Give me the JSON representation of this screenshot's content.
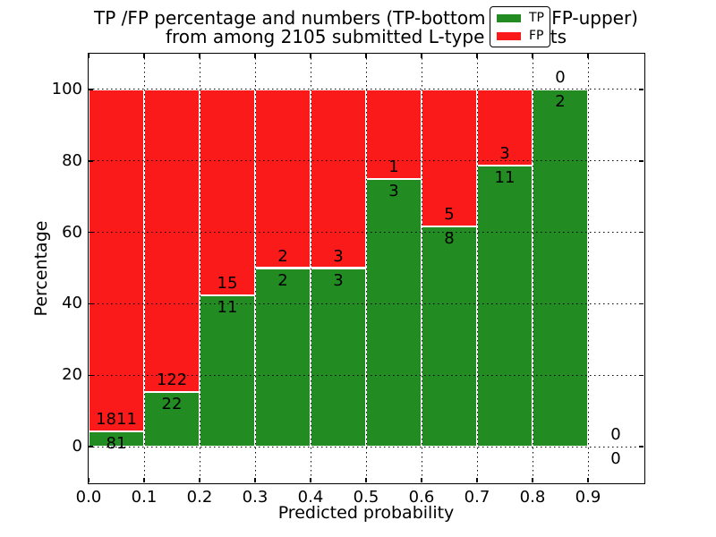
{
  "figure": {
    "title_line1": "TP /FP percentage and numbers (TP-bottom value, FP-upper)",
    "title_line2": "from among 2105 submitted L-type contacts"
  },
  "chart_data": {
    "type": "bar",
    "stacked": true,
    "normalized_to": "100% per bin",
    "title": "TP /FP percentage and numbers (TP-bottom value, FP-upper)\nfrom among 2105 submitted L-type contacts",
    "xlabel": "Predicted probability",
    "ylabel": "Percentage",
    "xlim": [
      0.0,
      1.0
    ],
    "ylim": [
      -10,
      110
    ],
    "x_tick_labels": [
      "0.0",
      "0.1",
      "0.2",
      "0.3",
      "0.4",
      "0.5",
      "0.6",
      "0.7",
      "0.8",
      "0.9"
    ],
    "y_tick_values": [
      0,
      20,
      40,
      60,
      80,
      100
    ],
    "grid": "dotted black, horizontal and vertical, drawn over bars",
    "legend_position": "upper-right",
    "bin_width": 0.1,
    "bin_starts": [
      0.0,
      0.1,
      0.2,
      0.3,
      0.4,
      0.5,
      0.6,
      0.7,
      0.8,
      0.9
    ],
    "series": [
      {
        "name": "TP",
        "color": "#228B22",
        "counts": [
          81,
          22,
          11,
          2,
          3,
          3,
          8,
          11,
          2,
          0
        ]
      },
      {
        "name": "FP",
        "color": "#FA1A1A",
        "counts": [
          1811,
          122,
          15,
          2,
          3,
          1,
          5,
          3,
          0,
          0
        ]
      }
    ],
    "tp_percent_per_bin": [
      4.28,
      15.28,
      42.31,
      50.0,
      50.0,
      75.0,
      61.54,
      78.57,
      100.0,
      0.0
    ],
    "total_contacts": 2105,
    "annotation_rule": "FP count above TP/FP boundary, TP count below boundary, at bin center"
  }
}
